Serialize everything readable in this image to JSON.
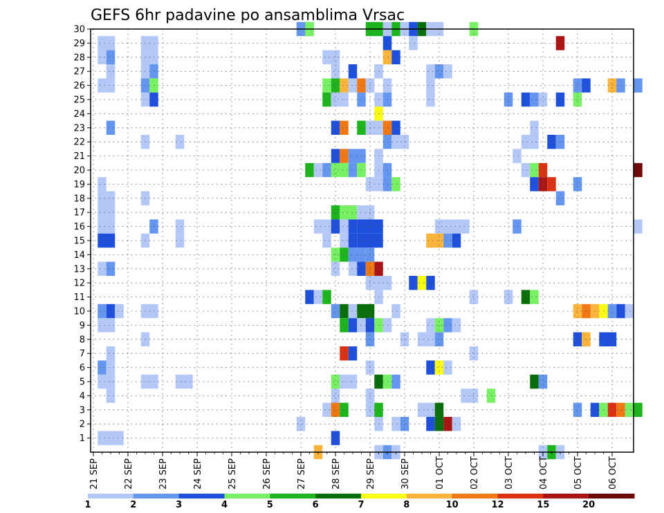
{
  "chart_data": {
    "type": "heatmap",
    "title": "GEFS 6hr padavine po ansamblima Vrsac",
    "ylabel": "",
    "xlabel": "",
    "y_tick_labels": [
      "1",
      "2",
      "3",
      "4",
      "5",
      "6",
      "7",
      "8",
      "9",
      "10",
      "11",
      "12",
      "13",
      "14",
      "15",
      "16",
      "17",
      "18",
      "19",
      "20",
      "21",
      "22",
      "23",
      "24",
      "25",
      "26",
      "27",
      "28",
      "29",
      "30"
    ],
    "x_tick_labels": [
      "21 SEP",
      "22 SEP",
      "23 SEP",
      "24 SEP",
      "25 SEP",
      "26 SEP",
      "27 SEP",
      "28 SEP",
      "29 SEP",
      "30 SEP",
      "01 OCT",
      "02 OCT",
      "03 OCT",
      "04 OCT",
      "05 OCT",
      "06 OCT"
    ],
    "y_range": [
      0,
      30
    ],
    "x_range_days": [
      0,
      15
    ],
    "steps_per_day": 4,
    "grid": true,
    "legend_position": "bottom",
    "colorbar": {
      "labels": [
        "1",
        "2",
        "3",
        "4",
        "5",
        "6",
        "7",
        "8",
        "10",
        "12",
        "15",
        "20"
      ],
      "colors": [
        "#b4c8f8",
        "#6496f0",
        "#1e50dc",
        "#78f064",
        "#1eb41e",
        "#0a6e0a",
        "#fafa14",
        "#fab43c",
        "#f07814",
        "#dc3214",
        "#aa1414",
        "#6e0a0a"
      ]
    },
    "palette": {
      "1": "#b4c8f8",
      "2": "#6496f0",
      "3": "#1e50dc",
      "4": "#78f064",
      "5": "#1eb41e",
      "6": "#0a6e0a",
      "7": "#fafa14",
      "8": "#fab43c",
      "10": "#f07814",
      "12": "#dc3214",
      "15": "#aa1414",
      "20": "#6e0a0a"
    },
    "cells": [
      [
        30,
        "26.0",
        "2",
        2
      ],
      [
        30,
        "26.25",
        "4",
        1
      ],
      [
        30,
        "28.0",
        "5",
        2
      ],
      [
        30,
        "28.5",
        "1",
        1
      ],
      [
        30,
        "28.75",
        "5",
        1
      ],
      [
        30,
        "29.0",
        "1",
        1
      ],
      [
        30,
        "29.25",
        "3",
        1
      ],
      [
        30,
        "29.5",
        "6",
        1
      ],
      [
        30,
        "29.75",
        "1",
        2
      ],
      [
        30,
        "31.0",
        "4",
        1
      ],
      [
        29,
        "0.25",
        "1",
        2
      ],
      [
        29,
        "1.5",
        "1",
        2
      ],
      [
        29,
        "28.5",
        "3",
        1
      ],
      [
        29,
        "29.25",
        "1",
        1
      ],
      [
        29,
        "33.5",
        "15",
        1
      ],
      [
        28,
        "0.25",
        "1",
        1
      ],
      [
        28,
        "0.5",
        "2",
        1
      ],
      [
        28,
        "1.5",
        "1",
        2
      ],
      [
        28,
        "26.75",
        "1",
        2
      ],
      [
        28,
        "28.5",
        "8",
        1
      ],
      [
        28,
        "28.75",
        "3",
        1
      ],
      [
        27,
        "0.5",
        "1",
        1
      ],
      [
        27,
        "1.5",
        "1",
        1
      ],
      [
        27,
        "1.75",
        "2",
        1
      ],
      [
        27,
        "27.0",
        "1",
        1
      ],
      [
        27,
        "27.5",
        "3",
        1
      ],
      [
        27,
        "28.25",
        "1",
        1
      ],
      [
        27,
        "29.75",
        "1",
        1
      ],
      [
        27,
        "30.0",
        "2",
        1
      ],
      [
        27,
        "30.25",
        "1",
        1
      ],
      [
        26,
        "0.25",
        "1",
        2
      ],
      [
        26,
        "1.5",
        "2",
        1
      ],
      [
        26,
        "1.75",
        "4",
        1
      ],
      [
        26,
        "26.75",
        "4",
        1
      ],
      [
        26,
        "27.0",
        "5",
        1
      ],
      [
        26,
        "27.25",
        "8",
        1
      ],
      [
        26,
        "27.5",
        "1",
        1
      ],
      [
        26,
        "27.75",
        "10",
        1
      ],
      [
        26,
        "28.0",
        "1",
        1
      ],
      [
        26,
        "28.5",
        "1",
        1
      ],
      [
        26,
        "29.75",
        "1",
        1
      ],
      [
        26,
        "34.0",
        "2",
        1
      ],
      [
        26,
        "34.25",
        "3",
        1
      ],
      [
        26,
        "35.0",
        "8",
        1
      ],
      [
        26,
        "35.25",
        "2",
        1
      ],
      [
        26,
        "35.75",
        "2",
        1
      ],
      [
        25,
        "1.5",
        "1",
        1
      ],
      [
        25,
        "1.75",
        "3",
        1
      ],
      [
        25,
        "26.75",
        "5",
        1
      ],
      [
        25,
        "27.0",
        "1",
        2
      ],
      [
        25,
        "27.75",
        "2",
        1
      ],
      [
        25,
        "28.25",
        "1",
        1
      ],
      [
        25,
        "28.5",
        "2",
        1
      ],
      [
        25,
        "29.75",
        "1",
        1
      ],
      [
        25,
        "32.0",
        "2",
        1
      ],
      [
        25,
        "32.5",
        "3",
        1
      ],
      [
        25,
        "32.75",
        "2",
        1
      ],
      [
        25,
        "33.0",
        "1",
        1
      ],
      [
        25,
        "33.5",
        "3",
        1
      ],
      [
        25,
        "34.0",
        "4",
        1
      ],
      [
        24,
        "28.25",
        "7",
        1
      ],
      [
        23,
        "0.5",
        "2",
        1
      ],
      [
        23,
        "27.0",
        "3",
        1
      ],
      [
        23,
        "27.25",
        "10",
        1
      ],
      [
        23,
        "27.75",
        "5",
        1
      ],
      [
        23,
        "28.0",
        "1",
        2
      ],
      [
        23,
        "28.5",
        "10",
        1
      ],
      [
        23,
        "28.75",
        "3",
        1
      ],
      [
        23,
        "32.75",
        "1",
        1
      ],
      [
        22,
        "1.5",
        "1",
        1
      ],
      [
        22,
        "2.5",
        "1",
        1
      ],
      [
        22,
        "28.5",
        "2",
        1
      ],
      [
        22,
        "28.75",
        "1",
        2
      ],
      [
        22,
        "32.5",
        "1",
        1
      ],
      [
        22,
        "32.75",
        "1",
        1
      ],
      [
        22,
        "33.25",
        "3",
        1
      ],
      [
        22,
        "33.5",
        "2",
        1
      ],
      [
        21,
        "27.0",
        "3",
        1
      ],
      [
        21,
        "27.25",
        "10",
        1
      ],
      [
        21,
        "27.5",
        "2",
        2
      ],
      [
        21,
        "28.25",
        "1",
        1
      ],
      [
        21,
        "32.25",
        "1",
        1
      ],
      [
        20,
        "26.25",
        "5",
        1
      ],
      [
        20,
        "26.5",
        "1",
        1
      ],
      [
        20,
        "26.75",
        "2",
        1
      ],
      [
        20,
        "27.0",
        "4",
        2
      ],
      [
        20,
        "27.5",
        "2",
        1
      ],
      [
        20,
        "27.75",
        "4",
        1
      ],
      [
        20,
        "28.25",
        "1",
        1
      ],
      [
        20,
        "28.5",
        "2",
        1
      ],
      [
        20,
        "32.5",
        "1",
        1
      ],
      [
        20,
        "32.75",
        "4",
        1
      ],
      [
        20,
        "33.0",
        "12",
        1
      ],
      [
        20,
        "35.75",
        "20",
        1
      ],
      [
        19,
        "0.25",
        "1",
        1
      ],
      [
        19,
        "28.0",
        "1",
        2
      ],
      [
        19,
        "28.5",
        "2",
        1
      ],
      [
        19,
        "28.75",
        "4",
        1
      ],
      [
        19,
        "32.75",
        "3",
        1
      ],
      [
        19,
        "33.0",
        "15",
        1
      ],
      [
        19,
        "33.25",
        "12",
        1
      ],
      [
        19,
        "34.0",
        "2",
        1
      ],
      [
        18,
        "0.25",
        "1",
        2
      ],
      [
        18,
        "1.5",
        "1",
        1
      ],
      [
        18,
        "33.5",
        "2",
        1
      ],
      [
        17,
        "0.25",
        "1",
        2
      ],
      [
        17,
        "27.0",
        "5",
        1
      ],
      [
        17,
        "27.25",
        "4",
        2
      ],
      [
        17,
        "27.75",
        "1",
        2
      ],
      [
        16,
        "0.25",
        "1",
        2
      ],
      [
        16,
        "1.75",
        "2",
        1
      ],
      [
        16,
        "2.5",
        "1",
        1
      ],
      [
        16,
        "26.5",
        "1",
        1
      ],
      [
        16,
        "26.75",
        "1",
        1
      ],
      [
        16,
        "27.0",
        "3",
        1
      ],
      [
        16,
        "27.25",
        "1",
        1
      ],
      [
        16,
        "27.5",
        "3",
        1
      ],
      [
        16,
        "27.75",
        "3",
        3
      ],
      [
        16,
        "30.0",
        "1",
        4
      ],
      [
        16,
        "32.25",
        "2",
        1
      ],
      [
        16,
        "35.75",
        "1",
        1
      ],
      [
        15,
        "0.25",
        "3",
        2
      ],
      [
        15,
        "1.5",
        "1",
        1
      ],
      [
        15,
        "2.5",
        "1",
        1
      ],
      [
        15,
        "26.75",
        "1",
        1
      ],
      [
        15,
        "27.25",
        "1",
        1
      ],
      [
        15,
        "27.5",
        "3",
        1
      ],
      [
        15,
        "27.75",
        "3",
        3
      ],
      [
        15,
        "29.75",
        "8",
        2
      ],
      [
        15,
        "30.25",
        "2",
        1
      ],
      [
        15,
        "30.5",
        "3",
        1
      ],
      [
        14,
        "27.0",
        "4",
        1
      ],
      [
        14,
        "27.25",
        "5",
        1
      ],
      [
        14,
        "27.5",
        "2",
        2
      ],
      [
        14,
        "28.0",
        "2",
        1
      ],
      [
        13,
        "0.25",
        "1",
        1
      ],
      [
        13,
        "0.5",
        "2",
        1
      ],
      [
        13,
        "27.0",
        "1",
        1
      ],
      [
        13,
        "27.5",
        "1",
        1
      ],
      [
        13,
        "27.75",
        "3",
        1
      ],
      [
        13,
        "28.0",
        "10",
        1
      ],
      [
        13,
        "28.25",
        "15",
        1
      ],
      [
        12,
        "28.0",
        "1",
        3
      ],
      [
        12,
        "29.25",
        "3",
        1
      ],
      [
        12,
        "29.5",
        "7",
        1
      ],
      [
        12,
        "29.75",
        "3",
        1
      ],
      [
        11,
        "26.25",
        "3",
        1
      ],
      [
        11,
        "26.5",
        "1",
        1
      ],
      [
        11,
        "26.75",
        "5",
        1
      ],
      [
        11,
        "28.25",
        "1",
        1
      ],
      [
        11,
        "31.0",
        "1",
        1
      ],
      [
        11,
        "32.0",
        "1",
        1
      ],
      [
        11,
        "32.5",
        "6",
        1
      ],
      [
        11,
        "32.75",
        "4",
        1
      ],
      [
        10,
        "0.25",
        "2",
        1
      ],
      [
        10,
        "0.5",
        "3",
        1
      ],
      [
        10,
        "0.75",
        "1",
        1
      ],
      [
        10,
        "1.5",
        "1",
        2
      ],
      [
        10,
        "27.0",
        "2",
        1
      ],
      [
        10,
        "27.25",
        "6",
        1
      ],
      [
        10,
        "27.5",
        "1",
        1
      ],
      [
        10,
        "27.75",
        "6",
        2
      ],
      [
        10,
        "28.75",
        "1",
        1
      ],
      [
        10,
        "34.0",
        "8",
        1
      ],
      [
        10,
        "34.25",
        "10",
        1
      ],
      [
        10,
        "34.5",
        "8",
        1
      ],
      [
        10,
        "34.75",
        "7",
        1
      ],
      [
        10,
        "35.0",
        "2",
        1
      ],
      [
        10,
        "35.25",
        "3",
        1
      ],
      [
        10,
        "35.5",
        "1",
        1
      ],
      [
        9,
        "0.25",
        "1",
        2
      ],
      [
        9,
        "27.25",
        "5",
        1
      ],
      [
        9,
        "27.5",
        "3",
        1
      ],
      [
        9,
        "27.75",
        "1",
        1
      ],
      [
        9,
        "28.0",
        "3",
        1
      ],
      [
        9,
        "28.25",
        "4",
        1
      ],
      [
        9,
        "28.5",
        "1",
        1
      ],
      [
        9,
        "29.75",
        "1",
        1
      ],
      [
        9,
        "30.0",
        "4",
        1
      ],
      [
        9,
        "30.25",
        "2",
        1
      ],
      [
        9,
        "30.5",
        "1",
        1
      ],
      [
        8,
        "1.5",
        "1",
        1
      ],
      [
        8,
        "28.0",
        "2",
        1
      ],
      [
        8,
        "29.0",
        "1",
        1
      ],
      [
        8,
        "29.5",
        "1",
        2
      ],
      [
        8,
        "30.0",
        "2",
        1
      ],
      [
        8,
        "34.0",
        "3",
        1
      ],
      [
        8,
        "34.25",
        "8",
        1
      ],
      [
        8,
        "34.75",
        "3",
        2
      ],
      [
        7,
        "0.5",
        "1",
        1
      ],
      [
        7,
        "27.25",
        "12",
        1
      ],
      [
        7,
        "27.5",
        "3",
        1
      ],
      [
        7,
        "31.0",
        "1",
        1
      ],
      [
        6,
        "0.25",
        "2",
        1
      ],
      [
        6,
        "0.5",
        "1",
        1
      ],
      [
        6,
        "28.0",
        "1",
        1
      ],
      [
        6,
        "29.75",
        "3",
        1
      ],
      [
        6,
        "30.0",
        "7",
        1
      ],
      [
        6,
        "30.25",
        "1",
        1
      ],
      [
        5,
        "0.25",
        "1",
        2
      ],
      [
        5,
        "1.5",
        "1",
        2
      ],
      [
        5,
        "2.5",
        "1",
        2
      ],
      [
        5,
        "27.0",
        "4",
        1
      ],
      [
        5,
        "27.25",
        "1",
        2
      ],
      [
        5,
        "28.25",
        "6",
        1
      ],
      [
        5,
        "28.5",
        "4",
        1
      ],
      [
        5,
        "28.75",
        "2",
        1
      ],
      [
        5,
        "32.75",
        "6",
        1
      ],
      [
        5,
        "33.0",
        "2",
        1
      ],
      [
        4,
        "0.5",
        "1",
        1
      ],
      [
        4,
        "27.0",
        "1",
        1
      ],
      [
        4,
        "28.0",
        "1",
        1
      ],
      [
        4,
        "30.75",
        "1",
        2
      ],
      [
        4,
        "31.5",
        "4",
        1
      ],
      [
        3,
        "26.75",
        "1",
        1
      ],
      [
        3,
        "27.0",
        "10",
        1
      ],
      [
        3,
        "27.25",
        "5",
        1
      ],
      [
        3,
        "28.0",
        "1",
        1
      ],
      [
        3,
        "28.25",
        "5",
        1
      ],
      [
        3,
        "29.5",
        "1",
        2
      ],
      [
        3,
        "30.0",
        "6",
        1
      ],
      [
        3,
        "34.0",
        "2",
        1
      ],
      [
        3,
        "34.5",
        "3",
        1
      ],
      [
        3,
        "34.75",
        "4",
        1
      ],
      [
        3,
        "35.0",
        "12",
        1
      ],
      [
        3,
        "35.25",
        "10",
        1
      ],
      [
        3,
        "35.5",
        "4",
        1
      ],
      [
        3,
        "35.75",
        "5",
        1
      ],
      [
        2,
        "26.0",
        "1",
        1
      ],
      [
        2,
        "28.25",
        "1",
        1
      ],
      [
        2,
        "28.75",
        "1",
        1
      ],
      [
        2,
        "29.0",
        "2",
        1
      ],
      [
        2,
        "29.75",
        "3",
        1
      ],
      [
        2,
        "30.0",
        "6",
        1
      ],
      [
        2,
        "30.25",
        "15",
        1
      ],
      [
        2,
        "30.5",
        "1",
        1
      ],
      [
        1,
        "0.25",
        "1",
        3
      ],
      [
        1,
        "27.0",
        "3",
        1
      ],
      [
        0,
        "26.5",
        "8",
        1
      ],
      [
        0,
        "28.25",
        "1",
        1
      ],
      [
        0,
        "28.5",
        "2",
        1
      ],
      [
        0,
        "28.75",
        "1",
        1
      ],
      [
        0,
        "33.0",
        "1",
        1
      ],
      [
        0,
        "33.25",
        "5",
        1
      ],
      [
        0,
        "33.5",
        "1",
        1
      ]
    ]
  }
}
